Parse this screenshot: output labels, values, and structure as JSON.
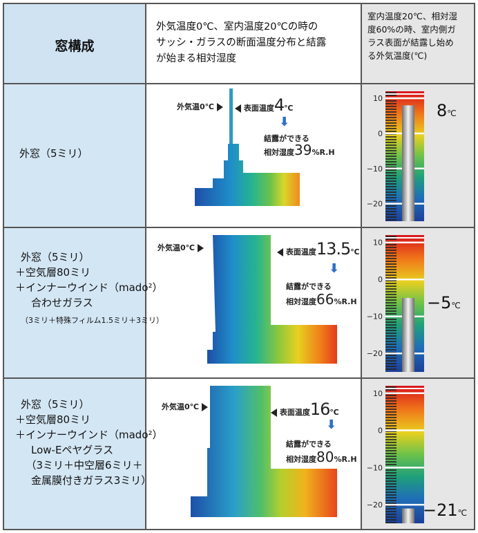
{
  "header": {
    "col1": "窓構成",
    "col2": "外気温度0℃、室内温度20℃の時の\nサッシ・ガラスの断面温度分布と結露\nが始まる相対湿度",
    "col3": "室内温度20℃、相対湿\n度60%の時、室内側ガ\nラス表面が結露し始め\nる外気温度(℃)"
  },
  "rows": [
    {
      "label_lines": [
        "外窓（5ミリ）"
      ],
      "note": "",
      "outside_label": "外気温0℃",
      "surface_label": "表面温度",
      "surface_value": "4",
      "surface_unit": "℃",
      "condense_label": "結露ができる",
      "rh_label": "相対湿度",
      "rh_value": "39",
      "rh_unit": "%R.H",
      "outdoor_temp": "8",
      "outdoor_unit": "℃",
      "level": 8
    },
    {
      "label_lines": [
        "外窓（5ミリ）",
        "＋空気層80ミリ",
        "＋インナーウインド（mado²）",
        "　合わせガラス"
      ],
      "note": "（3ミリ＋特殊フィルム1.5ミリ＋3ミリ）",
      "outside_label": "外気温0℃",
      "surface_label": "表面温度",
      "surface_value": "13.5",
      "surface_unit": "℃",
      "condense_label": "結露ができる",
      "rh_label": "相対湿度",
      "rh_value": "66",
      "rh_unit": "%R.H",
      "outdoor_temp": "−5",
      "outdoor_unit": "℃",
      "level": -5
    },
    {
      "label_lines": [
        "外窓（5ミリ）",
        "＋空気層80ミリ",
        "＋インナーウインド（mado²）",
        "　Low-Eペヤグラス",
        "　（3ミリ＋中空層6ミリ＋",
        "　金属膜付きガラス3ミリ）"
      ],
      "note": "",
      "outside_label": "外気温0℃",
      "surface_label": "表面温度",
      "surface_value": "16",
      "surface_unit": "℃",
      "condense_label": "結露ができる",
      "rh_label": "相対湿度",
      "rh_value": "80",
      "rh_unit": "%R.H",
      "outdoor_temp": "−21",
      "outdoor_unit": "℃",
      "level": -21
    }
  ],
  "scale_ticks": [
    "10",
    "0",
    "−10",
    "−20"
  ],
  "colors": {
    "header_bg": "#cfe3f3",
    "label_bg": "#d3e6f4",
    "cold": "#1d4fa8",
    "hot": "#d8141c",
    "arrow": "#2f6fc6"
  }
}
